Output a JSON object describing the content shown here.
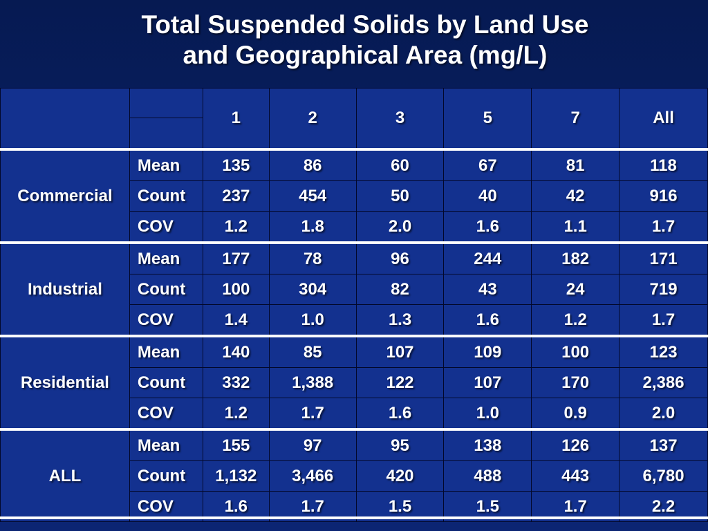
{
  "title": {
    "line1": "Total Suspended Solids by Land Use",
    "line2": "and Geographical Area (mg/L)"
  },
  "table": {
    "columns": [
      "1",
      "2",
      "3",
      "5",
      "7",
      "All"
    ],
    "groups": [
      {
        "name": "Commercial",
        "rows": [
          {
            "stat": "Mean",
            "values": [
              "135",
              "86",
              "60",
              "67",
              "81",
              "118"
            ]
          },
          {
            "stat": "Count",
            "values": [
              "237",
              "454",
              "50",
              "40",
              "42",
              "916"
            ]
          },
          {
            "stat": "COV",
            "values": [
              "1.2",
              "1.8",
              "2.0",
              "1.6",
              "1.1",
              "1.7"
            ]
          }
        ]
      },
      {
        "name": "Industrial",
        "rows": [
          {
            "stat": "Mean",
            "values": [
              "177",
              "78",
              "96",
              "244",
              "182",
              "171"
            ]
          },
          {
            "stat": "Count",
            "values": [
              "100",
              "304",
              "82",
              "43",
              "24",
              "719"
            ]
          },
          {
            "stat": "COV",
            "values": [
              "1.4",
              "1.0",
              "1.3",
              "1.6",
              "1.2",
              "1.7"
            ]
          }
        ]
      },
      {
        "name": "Residential",
        "rows": [
          {
            "stat": "Mean",
            "values": [
              "140",
              "85",
              "107",
              "109",
              "100",
              "123"
            ]
          },
          {
            "stat": "Count",
            "values": [
              "332",
              "1,388",
              "122",
              "107",
              "170",
              "2,386"
            ]
          },
          {
            "stat": "COV",
            "values": [
              "1.2",
              "1.7",
              "1.6",
              "1.0",
              "0.9",
              "2.0"
            ]
          }
        ]
      },
      {
        "name": "ALL",
        "rows": [
          {
            "stat": "Mean",
            "values": [
              "155",
              "97",
              "95",
              "138",
              "126",
              "137"
            ]
          },
          {
            "stat": "Count",
            "values": [
              "1,132",
              "3,466",
              "420",
              "488",
              "443",
              "6,780"
            ]
          },
          {
            "stat": "COV",
            "values": [
              "1.6",
              "1.7",
              "1.5",
              "1.5",
              "1.7",
              "2.2"
            ]
          }
        ]
      }
    ]
  },
  "colors": {
    "background": "#0a2169",
    "cell": "#13318f",
    "text": "#ffffff",
    "separator": "#ffffff"
  }
}
